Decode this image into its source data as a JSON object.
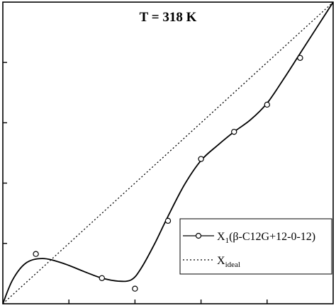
{
  "chart_data": {
    "type": "line",
    "title": "T = 318 K",
    "xlabel": "",
    "ylabel": "",
    "xlim": [
      0,
      1
    ],
    "ylim": [
      0,
      1
    ],
    "grid": false,
    "legend_position": "bottom-right",
    "x_ticks": [
      0.2,
      0.4,
      0.6,
      0.8
    ],
    "y_ticks": [
      0.2,
      0.4,
      0.6,
      0.8
    ],
    "series": [
      {
        "name_main": "X",
        "name_sub": "1",
        "name_rest": "(β-C12G+12-0-12)",
        "style": "solid-line-circle-markers",
        "points": {
          "x": [
            0.1,
            0.3,
            0.4,
            0.5,
            0.6,
            0.7,
            0.8,
            0.9
          ],
          "y": [
            0.165,
            0.085,
            0.05,
            0.275,
            0.48,
            0.57,
            0.66,
            0.815
          ]
        },
        "curve": {
          "x": [
            0,
            0.03,
            0.07,
            0.12,
            0.18,
            0.25,
            0.3,
            0.35,
            0.39,
            0.42,
            0.46,
            0.5,
            0.55,
            0.6,
            0.65,
            0.7,
            0.75,
            0.8,
            0.85,
            0.9,
            0.95,
            1.0
          ],
          "y": [
            0,
            0.08,
            0.135,
            0.15,
            0.135,
            0.105,
            0.085,
            0.075,
            0.08,
            0.12,
            0.2,
            0.29,
            0.395,
            0.475,
            0.525,
            0.57,
            0.61,
            0.665,
            0.745,
            0.83,
            0.915,
            1.0
          ]
        }
      },
      {
        "name_main": "X",
        "name_sub": "ideal",
        "style": "dotted",
        "x": [
          0,
          1
        ],
        "y": [
          0,
          1
        ]
      }
    ]
  }
}
